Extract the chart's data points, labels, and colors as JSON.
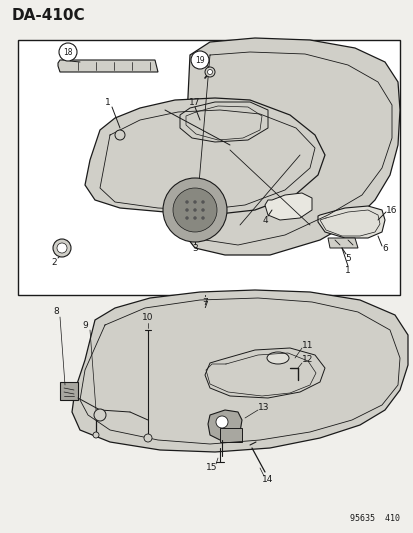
{
  "title": "DA-410C",
  "footer": "95635  410",
  "bg_color": "#f0efeb",
  "box_bg": "#ffffff",
  "lc": "#1a1a1a",
  "gray_light": "#d0cfc8",
  "gray_mid": "#a8a7a0",
  "gray_dark": "#888880"
}
